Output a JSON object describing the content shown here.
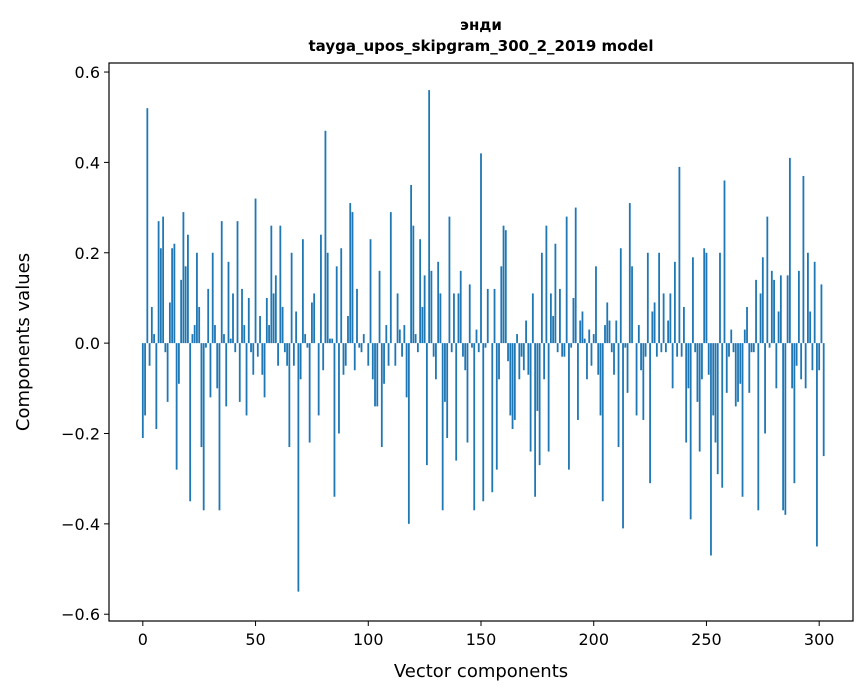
{
  "chart_data": {
    "type": "bar",
    "title_line1": "энди",
    "title_line2": "tayga_upos_skipgram_300_2_2019 model",
    "xlabel": "Vector components",
    "ylabel": "Components values",
    "xlim": [
      -15,
      315
    ],
    "ylim": [
      -0.615,
      0.62
    ],
    "xticks": [
      0,
      50,
      100,
      150,
      200,
      250,
      300
    ],
    "yticks": [
      -0.6,
      -0.4,
      -0.2,
      0.0,
      0.2,
      0.4,
      0.6
    ],
    "ytick_labels": [
      "−0.6",
      "−0.4",
      "−0.2",
      "0.0",
      "0.2",
      "0.4",
      "0.6"
    ],
    "bar_color": "#1f77b4",
    "values": [
      -0.21,
      -0.16,
      0.52,
      -0.05,
      0.08,
      0.02,
      -0.19,
      0.27,
      0.21,
      0.28,
      -0.02,
      -0.13,
      0.09,
      0.21,
      0.22,
      -0.28,
      -0.09,
      0.14,
      0.29,
      0.17,
      0.24,
      -0.35,
      0.02,
      0.04,
      0.2,
      0.08,
      -0.23,
      -0.37,
      -0.01,
      0.12,
      -0.12,
      0.2,
      0.04,
      -0.1,
      -0.37,
      0.27,
      0.02,
      -0.14,
      0.18,
      0.01,
      0.11,
      -0.02,
      0.27,
      -0.13,
      0.12,
      0.04,
      -0.16,
      0.1,
      -0.02,
      -0.07,
      0.32,
      -0.03,
      0.06,
      -0.07,
      -0.12,
      0.1,
      0.04,
      0.26,
      0.11,
      0.15,
      -0.05,
      0.26,
      0.08,
      -0.02,
      -0.05,
      -0.23,
      0.2,
      -0.05,
      0.07,
      -0.55,
      -0.08,
      0.23,
      0.02,
      -0.01,
      -0.22,
      0.09,
      0.11,
      0.0,
      -0.16,
      0.24,
      -0.06,
      0.47,
      0.2,
      0.01,
      0.01,
      -0.34,
      0.17,
      -0.2,
      0.21,
      -0.07,
      -0.05,
      0.06,
      0.31,
      0.29,
      -0.06,
      0.12,
      -0.01,
      -0.02,
      0.02,
      0.0,
      -0.05,
      0.23,
      -0.08,
      -0.14,
      -0.14,
      0.16,
      -0.23,
      -0.09,
      0.04,
      -0.05,
      0.29,
      0.0,
      -0.05,
      0.11,
      0.03,
      -0.03,
      0.04,
      -0.12,
      -0.4,
      0.35,
      0.26,
      0.02,
      -0.02,
      0.23,
      0.08,
      0.15,
      -0.27,
      0.56,
      0.16,
      -0.03,
      -0.08,
      0.18,
      0.11,
      -0.37,
      -0.13,
      -0.21,
      0.28,
      -0.02,
      0.11,
      -0.26,
      0.11,
      0.16,
      -0.03,
      -0.06,
      -0.22,
      0.13,
      -0.01,
      -0.37,
      0.03,
      -0.02,
      0.42,
      -0.35,
      -0.01,
      0.12,
      0.0,
      -0.33,
      0.12,
      -0.28,
      -0.08,
      0.17,
      0.26,
      0.25,
      -0.04,
      -0.16,
      -0.19,
      -0.17,
      0.02,
      -0.08,
      -0.03,
      -0.06,
      0.05,
      -0.07,
      -0.24,
      0.11,
      -0.34,
      -0.15,
      -0.27,
      0.2,
      -0.08,
      0.26,
      -0.24,
      0.11,
      0.06,
      0.22,
      -0.02,
      0.12,
      -0.03,
      -0.03,
      0.28,
      -0.28,
      -0.01,
      0.1,
      0.3,
      -0.17,
      0.05,
      0.07,
      0.01,
      -0.08,
      0.03,
      -0.05,
      0.02,
      0.17,
      -0.07,
      -0.16,
      -0.35,
      0.04,
      0.09,
      0.05,
      -0.02,
      -0.07,
      0.05,
      -0.23,
      0.21,
      -0.41,
      -0.01,
      -0.11,
      0.31,
      0.17,
      0.0,
      -0.16,
      0.04,
      -0.06,
      -0.17,
      -0.03,
      0.2,
      -0.31,
      0.07,
      0.09,
      -0.03,
      0.2,
      -0.02,
      0.11,
      -0.02,
      0.05,
      0.11,
      -0.1,
      0.18,
      -0.03,
      0.39,
      -0.03,
      0.08,
      -0.22,
      -0.1,
      -0.39,
      0.19,
      -0.02,
      -0.13,
      -0.24,
      -0.08,
      0.21,
      0.2,
      -0.07,
      -0.47,
      -0.16,
      -0.22,
      -0.29,
      0.2,
      -0.32,
      0.36,
      -0.11,
      -0.03,
      0.03,
      -0.02,
      -0.14,
      -0.13,
      -0.09,
      -0.34,
      0.03,
      0.08,
      -0.11,
      -0.02,
      -0.02,
      0.14,
      -0.37,
      0.11,
      0.19,
      -0.2,
      0.28,
      -0.01,
      0.16,
      0.14,
      -0.1,
      0.07,
      0.15,
      -0.37,
      -0.38,
      0.15,
      0.41,
      -0.1,
      -0.31,
      -0.05,
      0.16,
      -0.08,
      0.37,
      -0.1,
      0.2,
      0.07,
      -0.06,
      0.18,
      -0.45,
      -0.06,
      0.13,
      -0.25
    ]
  }
}
